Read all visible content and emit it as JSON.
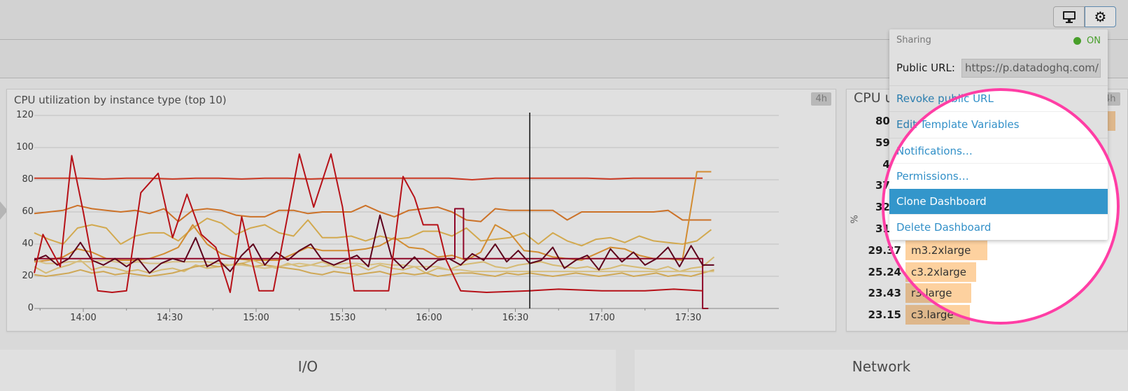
{
  "toolbar": {
    "monitor_icon": "monitor-icon",
    "settings_icon": "gear-icon"
  },
  "settings_menu": {
    "sharing_label": "Sharing",
    "sharing_status": "ON",
    "sharing_status_color": "#52b530",
    "public_url_label": "Public URL:",
    "public_url_value": "https://p.datadoghq.com/",
    "items": [
      {
        "label": "Revoke public URL"
      },
      {
        "label": "Edit Template Variables"
      },
      {
        "label": "Notifications…"
      },
      {
        "label": "Permissions…"
      },
      {
        "label": "Clone Dashboard",
        "highlighted": true
      },
      {
        "label": "Delete Dashboard"
      }
    ]
  },
  "cpu_chart_panel": {
    "title": "CPU utilization by instance type (top 10)",
    "time_badge": "4h"
  },
  "toplist_panel": {
    "title": "CPU u",
    "time_badge": "4h",
    "unit": "%",
    "rows": [
      {
        "value": "80.9",
        "label": ""
      },
      {
        "value": "59.9",
        "label": ""
      },
      {
        "value": "44.",
        "label": ""
      },
      {
        "value": "37.2",
        "label": ""
      },
      {
        "value": "32.5",
        "label": ""
      },
      {
        "value": "31.1",
        "label": ""
      },
      {
        "value": "29.37",
        "label": "m3.2xlarge"
      },
      {
        "value": "25.24",
        "label": "c3.2xlarge"
      },
      {
        "value": "23.43",
        "label": "r3.large"
      },
      {
        "value": "23.15",
        "label": "c3.large"
      }
    ]
  },
  "bottom_panels": [
    {
      "title": "I/O"
    },
    {
      "title": "Network"
    }
  ],
  "chart_data": {
    "type": "line",
    "title": "CPU utilization by instance type (top 10)",
    "ylim": [
      0,
      120
    ],
    "yticks": [
      "0",
      "20",
      "40",
      "60",
      "80",
      "100",
      "120"
    ],
    "xlim": [
      "13:43",
      "17:39"
    ],
    "xticks": [
      "14:00",
      "14:30",
      "15:00",
      "15:30",
      "16:00",
      "16:30",
      "17:00",
      "17:30"
    ],
    "grid": true,
    "cursor_time": "16:35",
    "series": [
      {
        "color": "#e8432a",
        "start": "13:43",
        "step_minutes": 8,
        "values": [
          81,
          81,
          81,
          80.5,
          81,
          81,
          80.5,
          81,
          81,
          80.5,
          81,
          81,
          80.5,
          81,
          81,
          81,
          81,
          81,
          81,
          80,
          81,
          81,
          81,
          81,
          81,
          80.5,
          81,
          81,
          81,
          81
        ]
      },
      {
        "color": "#e9822e",
        "start": "13:43",
        "step_minutes": 5,
        "values": [
          59,
          60,
          61,
          64,
          62,
          61,
          60,
          61,
          59,
          62,
          54,
          61,
          62,
          61,
          58,
          57,
          57,
          61,
          61,
          59,
          60,
          60,
          60,
          64,
          60,
          57,
          61,
          62,
          63,
          60,
          55,
          54,
          62,
          61,
          61,
          61,
          61,
          55,
          60,
          60,
          60,
          60,
          60,
          60,
          61,
          55,
          55,
          55
        ]
      },
      {
        "color": "#f0c15a",
        "start": "13:43",
        "step_minutes": 5,
        "values": [
          47,
          43,
          40,
          50,
          52,
          50,
          40,
          45,
          47,
          47,
          42,
          50,
          56,
          53,
          46,
          50,
          52,
          47,
          45,
          55,
          44,
          44,
          45,
          42,
          45,
          43,
          44,
          48,
          48,
          45,
          50,
          42,
          43,
          44,
          47,
          40,
          47,
          42,
          39,
          43,
          44,
          41,
          45,
          42,
          41,
          40,
          42,
          49
        ]
      },
      {
        "color": "#f0a03a",
        "start": "13:43",
        "step_minutes": 5,
        "values": [
          29,
          30,
          32,
          37,
          35,
          31,
          30,
          30,
          31,
          34,
          38,
          52,
          40,
          34,
          31,
          30,
          30,
          30,
          34,
          38,
          36,
          36,
          36,
          37,
          39,
          44,
          38,
          37,
          32,
          33,
          30,
          35,
          52,
          47,
          36,
          35,
          32,
          31,
          30,
          34,
          38,
          37,
          33,
          31,
          31,
          30,
          85,
          85
        ]
      },
      {
        "color": "#f3d483",
        "start": "13:43",
        "step_minutes": 4,
        "values": [
          26,
          22,
          25,
          27,
          30,
          24,
          26,
          25,
          23,
          24,
          22,
          24,
          25,
          23,
          27,
          25,
          26,
          27,
          28,
          30,
          27,
          25,
          28,
          26,
          27,
          29,
          26,
          25,
          27,
          24,
          27,
          25,
          24,
          26,
          22,
          25,
          24,
          27,
          28,
          29,
          26,
          25,
          27,
          28,
          29,
          27,
          26,
          25,
          26,
          24,
          25,
          27,
          26,
          25,
          24,
          26,
          23,
          25,
          26,
          32
        ]
      },
      {
        "color": "#ecc063",
        "start": "13:43",
        "step_minutes": 4,
        "values": [
          21,
          20,
          21,
          22,
          24,
          22,
          23,
          21,
          22,
          21,
          20,
          21,
          22,
          24,
          26,
          27,
          26,
          27,
          28,
          26,
          27,
          26,
          25,
          24,
          22,
          21,
          23,
          22,
          21,
          22,
          23,
          21,
          22,
          21,
          22,
          20,
          21,
          22,
          22,
          21,
          20,
          22,
          21,
          22,
          21,
          20,
          21,
          22,
          21,
          20,
          21,
          22,
          20,
          21,
          22,
          20,
          21,
          20,
          22,
          24
        ]
      },
      {
        "color": "#f5dc98",
        "start": "13:43",
        "step_minutes": 4,
        "values": [
          30,
          28,
          28,
          29,
          29,
          29,
          30,
          29,
          28,
          29,
          28,
          28,
          29,
          29,
          29,
          29,
          28,
          27,
          27,
          26,
          25,
          26,
          27,
          28,
          27,
          26,
          27,
          28,
          28,
          27,
          28,
          27,
          27,
          26,
          26,
          26,
          24,
          24,
          23,
          23,
          23,
          23,
          23,
          23,
          23,
          23,
          23,
          23,
          23,
          23,
          23,
          23,
          23,
          23,
          23,
          23,
          23,
          23,
          23,
          23
        ]
      },
      {
        "color": "#a3082f",
        "points": [
          [
            "13:43",
            31
          ],
          [
            "16:09",
            31
          ],
          [
            "16:09",
            62
          ],
          [
            "16:12",
            62
          ],
          [
            "16:12",
            31
          ],
          [
            "17:35",
            31
          ],
          [
            "17:35",
            0
          ],
          [
            "17:37",
            0
          ]
        ]
      },
      {
        "color": "#6b0020",
        "start": "13:43",
        "step_minutes": 4,
        "values": [
          30,
          33,
          27,
          31,
          41,
          30,
          27,
          31,
          26,
          31,
          22,
          28,
          31,
          29,
          44,
          26,
          30,
          23,
          33,
          40,
          27,
          35,
          30,
          36,
          40,
          30,
          27,
          30,
          33,
          26,
          58,
          32,
          25,
          32,
          24,
          30,
          31,
          27,
          34,
          30,
          40,
          29,
          36,
          28,
          30,
          38,
          25,
          30,
          33,
          24,
          37,
          29,
          35,
          27,
          31,
          38,
          26,
          39,
          27,
          27
        ]
      },
      {
        "color": "#d0141c",
        "points": [
          [
            "13:43",
            22
          ],
          [
            "13:46",
            46
          ],
          [
            "13:52",
            26
          ],
          [
            "13:56",
            95
          ],
          [
            "14:00",
            60
          ],
          [
            "14:05",
            11
          ],
          [
            "14:10",
            10
          ],
          [
            "14:15",
            11
          ],
          [
            "14:20",
            72
          ],
          [
            "14:26",
            84
          ],
          [
            "14:31",
            44
          ],
          [
            "14:36",
            71
          ],
          [
            "14:41",
            46
          ],
          [
            "14:46",
            38
          ],
          [
            "14:51",
            10
          ],
          [
            "14:55",
            57
          ],
          [
            "15:01",
            11
          ],
          [
            "15:06",
            11
          ],
          [
            "15:15",
            96
          ],
          [
            "15:20",
            63
          ],
          [
            "15:26",
            96
          ],
          [
            "15:30",
            63
          ],
          [
            "15:34",
            11
          ],
          [
            "15:39",
            11
          ],
          [
            "15:46",
            11
          ],
          [
            "15:51",
            82
          ],
          [
            "15:55",
            69
          ],
          [
            "15:58",
            52
          ],
          [
            "16:03",
            52
          ],
          [
            "16:06",
            30
          ],
          [
            "16:11",
            11
          ],
          [
            "16:20",
            10
          ],
          [
            "16:35",
            11
          ],
          [
            "16:45",
            12
          ],
          [
            "17:00",
            11
          ],
          [
            "17:15",
            11
          ],
          [
            "17:25",
            12
          ],
          [
            "17:35",
            11
          ]
        ]
      }
    ]
  }
}
